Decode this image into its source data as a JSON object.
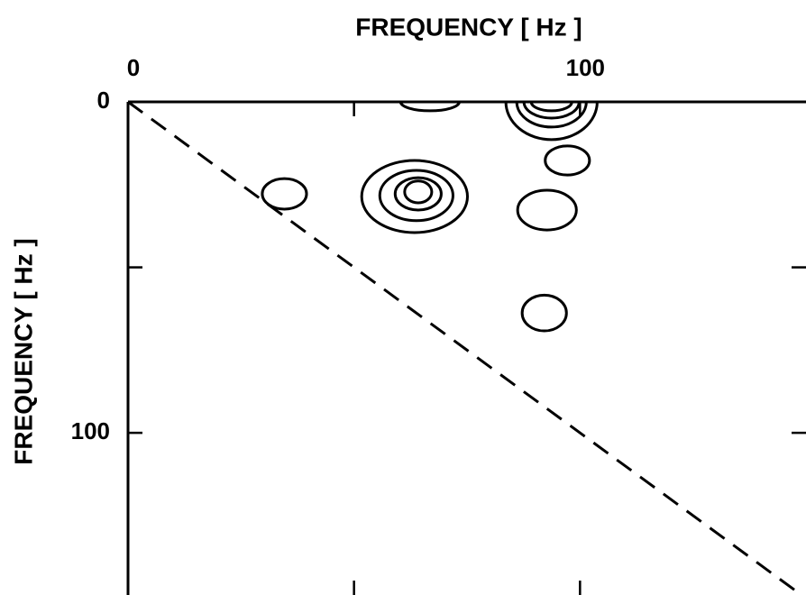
{
  "chart_data": {
    "type": "contour",
    "xlabel": "FREQUENCY [ Hz ]",
    "ylabel": "FREQUENCY [ Hz ]",
    "xlim": [
      0,
      150
    ],
    "ylim": [
      0,
      149
    ],
    "xticks": [
      0,
      100
    ],
    "yticks": [
      0,
      100
    ],
    "xminor": [
      50
    ],
    "yminor": [
      50
    ],
    "diagonal": true,
    "color": "#000000",
    "contours": [
      {
        "cx": 34.6,
        "cy": 27.8,
        "rx": 4.9,
        "ry": 4.6
      },
      {
        "cx": 63.4,
        "cy": 28.6,
        "rx": 11.7,
        "ry": 10.9
      },
      {
        "cx": 63.8,
        "cy": 28.3,
        "rx": 8.1,
        "ry": 7.6
      },
      {
        "cx": 64.2,
        "cy": 27.8,
        "rx": 5.1,
        "ry": 4.9
      },
      {
        "cx": 64.2,
        "cy": 27.2,
        "rx": 3.0,
        "ry": 3.3
      },
      {
        "cx": 92.7,
        "cy": 32.7,
        "rx": 6.5,
        "ry": 6.0
      },
      {
        "cx": 97.2,
        "cy": 17.7,
        "rx": 4.9,
        "ry": 4.4
      },
      {
        "cx": 92.1,
        "cy": 63.8,
        "rx": 4.9,
        "ry": 5.4
      },
      {
        "cx": 66.8,
        "cy": 0,
        "rx": 6.5,
        "ry": 2.7
      },
      {
        "cx": 93.7,
        "cy": 0,
        "rx": 10.1,
        "ry": 11.4
      },
      {
        "cx": 93.7,
        "cy": 0,
        "rx": 7.7,
        "ry": 7.6
      },
      {
        "cx": 93.7,
        "cy": 0,
        "rx": 6.1,
        "ry": 4.9
      },
      {
        "cx": 93.7,
        "cy": 0,
        "rx": 4.5,
        "ry": 2.7
      }
    ]
  }
}
